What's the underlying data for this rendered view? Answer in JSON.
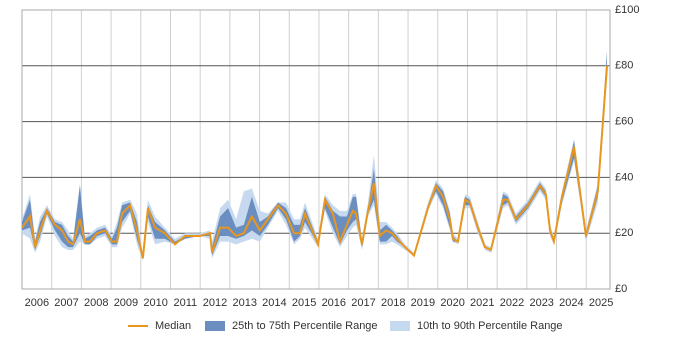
{
  "chart_data": {
    "type": "percentile-band",
    "x": [
      2006.0,
      2006.27,
      2006.44,
      2006.61,
      2006.84,
      2007.11,
      2007.35,
      2007.55,
      2007.72,
      2007.95,
      2008.12,
      2008.29,
      2008.53,
      2008.8,
      2009.03,
      2009.2,
      2009.37,
      2009.64,
      2009.87,
      2010.07,
      2010.24,
      2010.48,
      2010.81,
      2011.15,
      2011.49,
      2011.99,
      2012.33,
      2012.4,
      2012.67,
      2012.94,
      2013.21,
      2013.47,
      2013.74,
      2014.01,
      2014.28,
      2014.62,
      2014.89,
      2015.16,
      2015.36,
      2015.53,
      2015.97,
      2016.2,
      2016.47,
      2016.71,
      2016.94,
      2017.14,
      2017.25,
      2017.45,
      2017.65,
      2017.85,
      2018.05,
      2018.26,
      2018.46,
      2018.63,
      2018.9,
      2019.2,
      2019.67,
      2019.94,
      2020.18,
      2020.41,
      2020.51,
      2020.68,
      2020.92,
      2021.08,
      2021.35,
      2021.59,
      2021.79,
      2022.2,
      2022.36,
      2022.63,
      2023.04,
      2023.44,
      2023.64,
      2023.78,
      2023.91,
      2024.18,
      2024.59,
      2024.99,
      2025.39,
      2025.7
    ],
    "series": [
      {
        "name": "Median",
        "color": "#e8961e",
        "values": [
          22,
          26,
          15,
          21,
          28,
          23,
          21,
          17,
          16,
          25,
          17,
          17,
          20,
          21,
          17,
          17,
          27,
          30,
          21,
          11,
          29,
          22,
          20,
          16,
          19,
          19,
          20,
          13,
          22,
          22,
          19,
          20,
          26,
          21,
          25,
          30,
          27,
          20,
          20,
          27,
          16,
          32,
          27,
          17,
          23,
          28,
          27,
          16,
          28,
          38,
          19,
          21,
          20,
          18,
          15,
          12,
          29,
          37,
          33,
          25,
          18,
          17,
          32,
          31,
          22,
          15,
          14,
          32,
          32,
          25,
          30,
          37,
          34,
          21,
          17,
          33,
          51,
          19,
          35,
          80
        ]
      },
      {
        "name": "25th to 75th Percentile Range",
        "color": "#6a8ebf",
        "low": [
          21,
          22,
          14,
          19,
          27,
          21,
          17,
          15,
          15,
          20,
          16,
          16,
          19,
          20,
          16,
          16,
          24,
          28,
          18,
          11,
          26,
          18,
          18,
          16,
          18,
          19,
          19,
          12,
          19,
          19,
          18,
          19,
          21,
          19,
          23,
          29,
          25,
          17,
          19,
          24,
          16,
          29,
          22,
          16,
          21,
          24,
          25,
          15,
          27,
          32,
          17,
          17,
          19,
          17,
          15,
          12,
          29,
          35,
          30,
          22,
          17,
          17,
          30,
          30,
          21,
          15,
          14,
          30,
          31,
          24,
          29,
          36,
          33,
          20,
          17,
          31,
          47,
          18,
          33,
          78
        ],
        "high": [
          24,
          32,
          17,
          24,
          29,
          24,
          23,
          19,
          17,
          37,
          18,
          19,
          21,
          22,
          18,
          22,
          30,
          31,
          24,
          11,
          30,
          24,
          21,
          17,
          19,
          19,
          20,
          15,
          26,
          29,
          22,
          23,
          33,
          24,
          26,
          31,
          29,
          23,
          23,
          29,
          17,
          33,
          28,
          26,
          26,
          33,
          33,
          17,
          29,
          43,
          21,
          23,
          21,
          19,
          15,
          12,
          30,
          38,
          35,
          27,
          19,
          17,
          33,
          32,
          23,
          15,
          14,
          34,
          33,
          26,
          31,
          38,
          35,
          22,
          18,
          34,
          53,
          20,
          37,
          85
        ]
      },
      {
        "name": "10th to 90th Percentile Range",
        "color": "#c6d9ee",
        "low": [
          20,
          18,
          13,
          17,
          26,
          19,
          15,
          14,
          14,
          17,
          16,
          16,
          18,
          19,
          15,
          15,
          22,
          27,
          16,
          10,
          24,
          16,
          17,
          16,
          18,
          19,
          18,
          11,
          17,
          17,
          16,
          17,
          18,
          17,
          22,
          28,
          23,
          16,
          18,
          22,
          15,
          28,
          20,
          15,
          19,
          22,
          23,
          14,
          26,
          30,
          16,
          16,
          17,
          16,
          14,
          12,
          28,
          34,
          29,
          21,
          17,
          16,
          29,
          29,
          20,
          14,
          13,
          29,
          30,
          23,
          28,
          35,
          32,
          19,
          16,
          30,
          46,
          17,
          31,
          77
        ],
        "high": [
          25,
          34,
          18,
          26,
          30,
          25,
          24,
          21,
          18,
          38,
          19,
          20,
          22,
          23,
          19,
          24,
          31,
          32,
          27,
          12,
          32,
          26,
          22,
          18,
          20,
          20,
          21,
          17,
          29,
          32,
          25,
          35,
          36,
          28,
          27,
          31,
          31,
          25,
          25,
          31,
          18,
          34,
          30,
          28,
          28,
          34,
          34,
          18,
          31,
          48,
          24,
          24,
          22,
          20,
          16,
          13,
          31,
          39,
          36,
          28,
          20,
          18,
          34,
          33,
          24,
          16,
          15,
          35,
          34,
          27,
          32,
          39,
          36,
          23,
          19,
          35,
          54,
          21,
          38,
          86
        ]
      }
    ],
    "xlim": [
      2006,
      2025.8
    ],
    "xticks": [
      2006,
      2007,
      2008,
      2009,
      2010,
      2011,
      2012,
      2013,
      2014,
      2015,
      2016,
      2017,
      2018,
      2019,
      2020,
      2021,
      2022,
      2023,
      2024,
      2025
    ],
    "ylim": [
      0,
      100
    ],
    "yticks": [
      {
        "value": 0,
        "label": "£0"
      },
      {
        "value": 20,
        "label": "£20"
      },
      {
        "value": 40,
        "label": "£40"
      },
      {
        "value": 60,
        "label": "£60"
      },
      {
        "value": 80,
        "label": "£80"
      },
      {
        "value": 100,
        "label": "£100"
      }
    ],
    "grid": true
  }
}
